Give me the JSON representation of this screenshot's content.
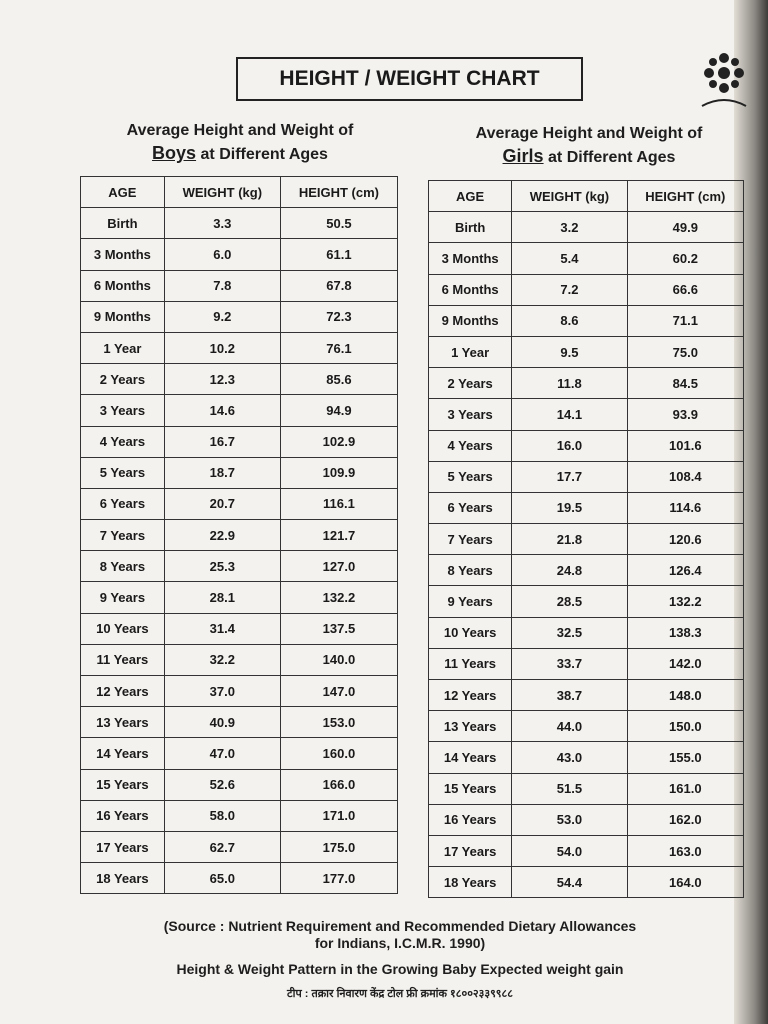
{
  "header": {
    "title": "HEIGHT / WEIGHT CHART"
  },
  "boys": {
    "heading": {
      "line1": "Average Height and Weight of",
      "subject": "Boys",
      "line2": "at Different Ages"
    },
    "table": {
      "columns": [
        "AGE",
        "WEIGHT (kg)",
        "HEIGHT (cm)"
      ],
      "rows": [
        [
          "Birth",
          "3.3",
          "50.5"
        ],
        [
          "3 Months",
          "6.0",
          "61.1"
        ],
        [
          "6 Months",
          "7.8",
          "67.8"
        ],
        [
          "9 Months",
          "9.2",
          "72.3"
        ],
        [
          "1 Year",
          "10.2",
          "76.1"
        ],
        [
          "2 Years",
          "12.3",
          "85.6"
        ],
        [
          "3 Years",
          "14.6",
          "94.9"
        ],
        [
          "4 Years",
          "16.7",
          "102.9"
        ],
        [
          "5 Years",
          "18.7",
          "109.9"
        ],
        [
          "6 Years",
          "20.7",
          "116.1"
        ],
        [
          "7 Years",
          "22.9",
          "121.7"
        ],
        [
          "8 Years",
          "25.3",
          "127.0"
        ],
        [
          "9 Years",
          "28.1",
          "132.2"
        ],
        [
          "10 Years",
          "31.4",
          "137.5"
        ],
        [
          "11 Years",
          "32.2",
          "140.0"
        ],
        [
          "12 Years",
          "37.0",
          "147.0"
        ],
        [
          "13 Years",
          "40.9",
          "153.0"
        ],
        [
          "14 Years",
          "47.0",
          "160.0"
        ],
        [
          "15 Years",
          "52.6",
          "166.0"
        ],
        [
          "16 Years",
          "58.0",
          "171.0"
        ],
        [
          "17 Years",
          "62.7",
          "175.0"
        ],
        [
          "18 Years",
          "65.0",
          "177.0"
        ]
      ]
    }
  },
  "girls": {
    "heading": {
      "line1": "Average Height and Weight of",
      "subject": "Girls",
      "line2": "at Different Ages"
    },
    "table": {
      "columns": [
        "AGE",
        "WEIGHT (kg)",
        "HEIGHT (cm)"
      ],
      "rows": [
        [
          "Birth",
          "3.2",
          "49.9"
        ],
        [
          "3 Months",
          "5.4",
          "60.2"
        ],
        [
          "6 Months",
          "7.2",
          "66.6"
        ],
        [
          "9 Months",
          "8.6",
          "71.1"
        ],
        [
          "1 Year",
          "9.5",
          "75.0"
        ],
        [
          "2 Years",
          "11.8",
          "84.5"
        ],
        [
          "3 Years",
          "14.1",
          "93.9"
        ],
        [
          "4 Years",
          "16.0",
          "101.6"
        ],
        [
          "5 Years",
          "17.7",
          "108.4"
        ],
        [
          "6 Years",
          "19.5",
          "114.6"
        ],
        [
          "7 Years",
          "21.8",
          "120.6"
        ],
        [
          "8 Years",
          "24.8",
          "126.4"
        ],
        [
          "9 Years",
          "28.5",
          "132.2"
        ],
        [
          "10 Years",
          "32.5",
          "138.3"
        ],
        [
          "11 Years",
          "33.7",
          "142.0"
        ],
        [
          "12 Years",
          "38.7",
          "148.0"
        ],
        [
          "13 Years",
          "44.0",
          "150.0"
        ],
        [
          "14 Years",
          "43.0",
          "155.0"
        ],
        [
          "15 Years",
          "51.5",
          "161.0"
        ],
        [
          "16 Years",
          "53.0",
          "162.0"
        ],
        [
          "17 Years",
          "54.0",
          "163.0"
        ],
        [
          "18 Years",
          "54.4",
          "164.0"
        ]
      ]
    }
  },
  "footer": {
    "source_line1": "(Source : Nutrient Requirement and Recommended Dietary Allowances",
    "source_line2": "for Indians, I.C.M.R. 1990)",
    "note": "Height & Weight Pattern in the Growing Baby Expected weight gain",
    "helpline": "टीप : तक्रार निवारण केंद्र टोल फ्री क्रमांक १८००२३३९९८८"
  }
}
